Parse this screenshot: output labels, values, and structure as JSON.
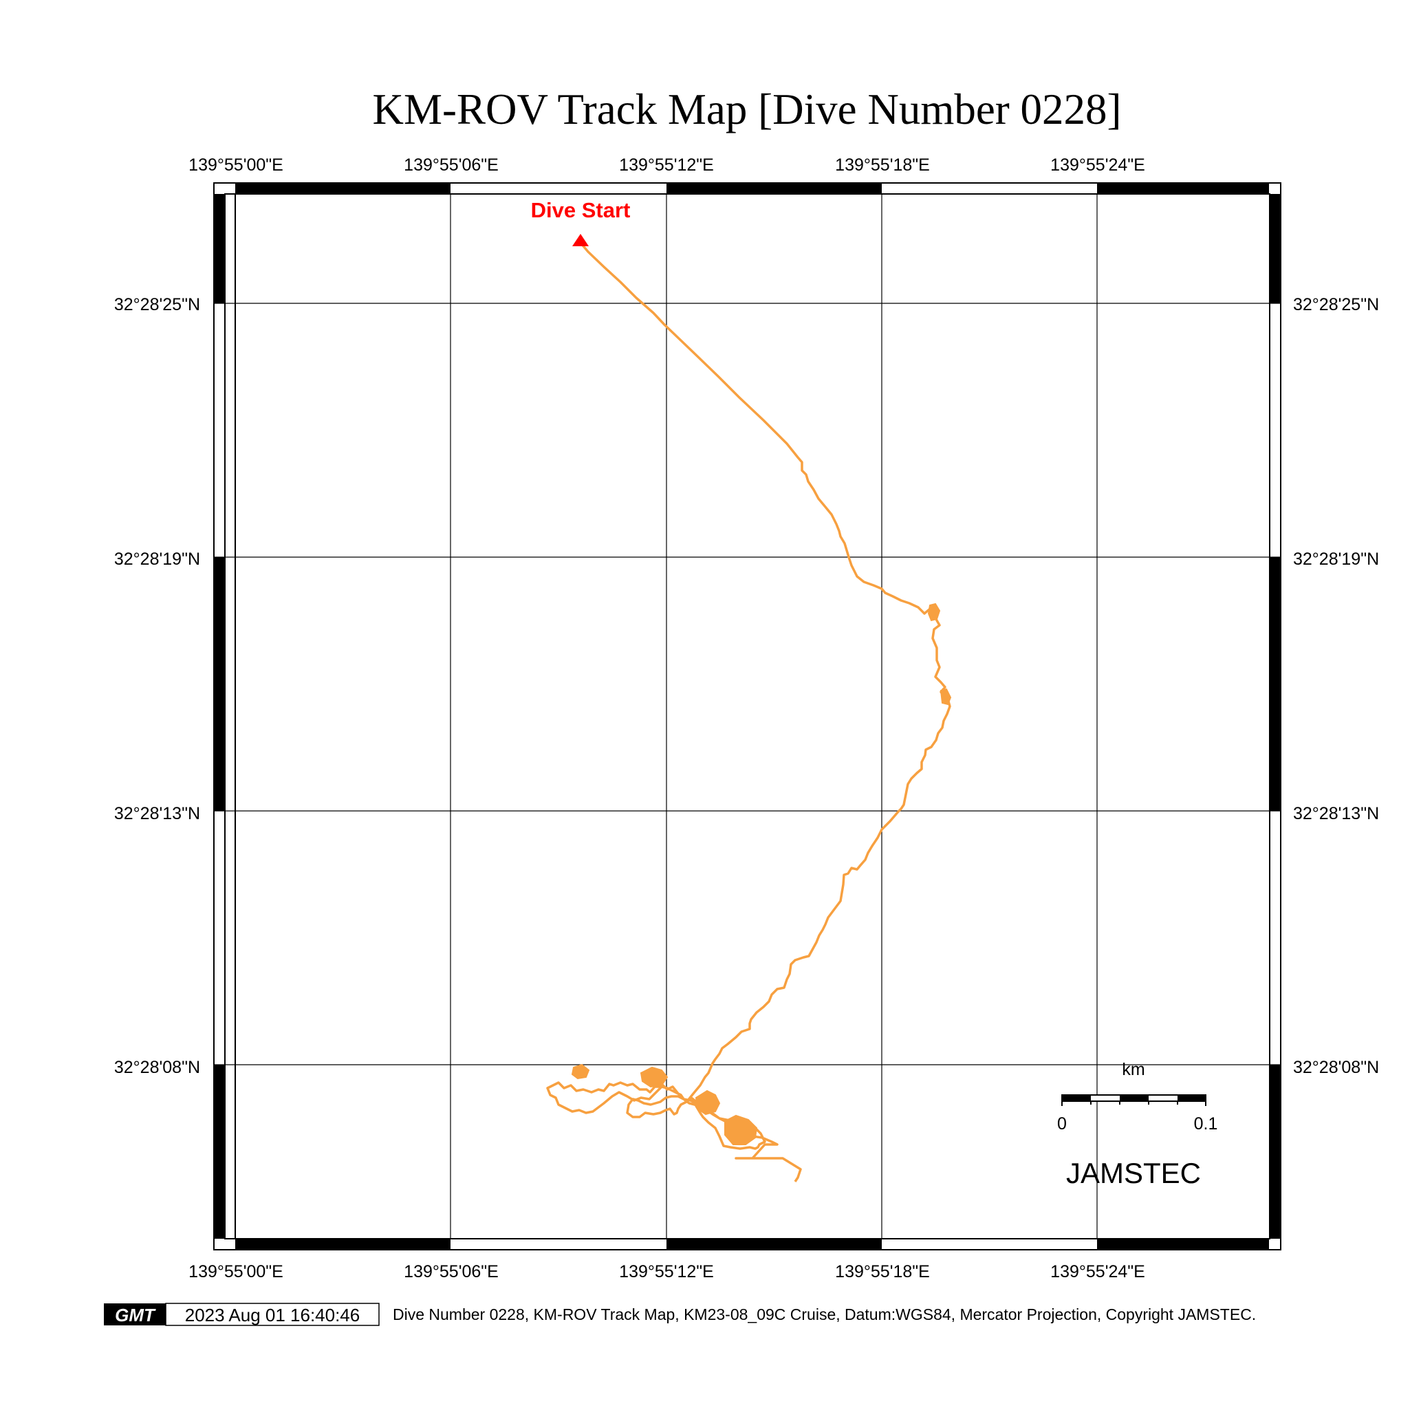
{
  "title": "KM-ROV Track Map [Dive Number 0228]",
  "axes": {
    "lon_ticks": [
      "139°55'00\"E",
      "139°55'06\"E",
      "139°55'12\"E",
      "139°55'18\"E",
      "139°55'24\"E"
    ],
    "lat_ticks": [
      "32°28'25\"N",
      "32°28'19\"N",
      "32°28'13\"N",
      "32°28'08\"N"
    ]
  },
  "marker": {
    "label": "Dive Start",
    "color": "#ff0000",
    "symbol": "triangle-icon"
  },
  "track": {
    "color": "#f7a040",
    "note_shape": "dive-track-line"
  },
  "scale_bar": {
    "unit": "km",
    "start_label": "0",
    "end_label": "0.1"
  },
  "brand": "JAMSTEC",
  "footer": {
    "logo_text": "GMT",
    "timestamp": "2023 Aug 01 16:40:46",
    "caption": "Dive Number 0228, KM-ROV Track Map, KM23-08_09C Cruise, Datum:WGS84, Mercator Projection, Copyright JAMSTEC."
  }
}
